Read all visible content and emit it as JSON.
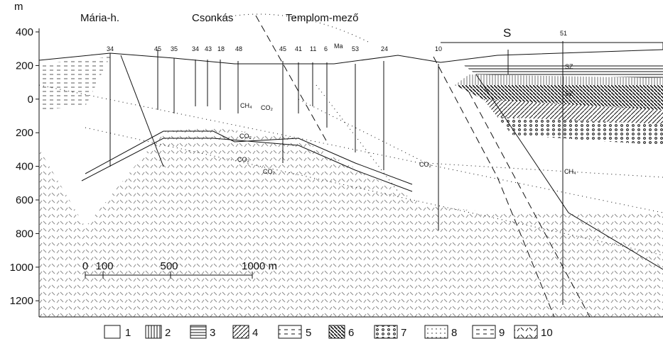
{
  "axis": {
    "unit": "m",
    "ticks": [
      "400",
      "200",
      "0",
      "200",
      "400",
      "600",
      "800",
      "1000",
      "1200"
    ]
  },
  "places": [
    "Mária-h.",
    "Csonkás",
    "Templom-mező",
    "S"
  ],
  "wells": [
    "34",
    "45",
    "35",
    "34",
    "43",
    "18",
    "48",
    "45",
    "41",
    "11",
    "6",
    "53",
    "24",
    "10",
    "51"
  ],
  "annotations": [
    "CO₂",
    "CO₂",
    "CO₂",
    "CO₂",
    "CO₂",
    "CH₄",
    "CH₄",
    "SZ",
    "SZ",
    "Ma"
  ],
  "scale": {
    "labels": [
      "0",
      "100",
      "500",
      "1000 m"
    ]
  },
  "legend": [
    "1",
    "2",
    "3",
    "4",
    "5",
    "6",
    "7",
    "8",
    "9",
    "10"
  ]
}
